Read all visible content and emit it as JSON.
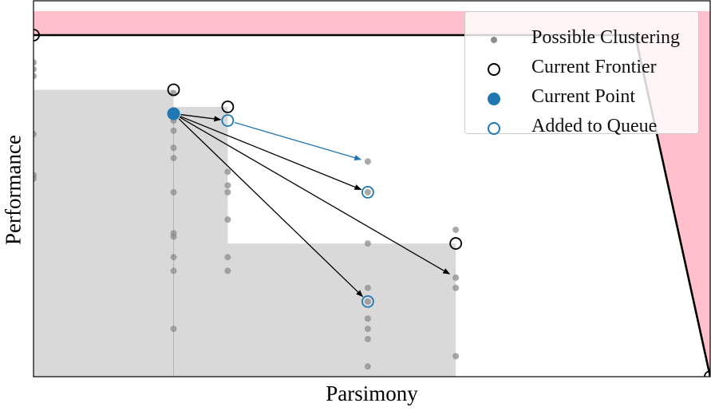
{
  "chart_data": {
    "type": "scatter",
    "title": "",
    "xlabel": "Parsimony",
    "ylabel": "Performance",
    "xlim": [
      0,
      100
    ],
    "ylim": [
      0,
      100
    ],
    "grid": false,
    "legend_position": "top-right",
    "colors": {
      "possible": "#8c8c8c",
      "frontier": "#000000",
      "current": "#1f77b4",
      "queue": "#1f77b4",
      "dominated_region": "#d9d9d9",
      "infeasible_region": "#ffc0cb",
      "blue_arrow": "#1f77b4",
      "black_arrow": "#000000"
    },
    "legend": [
      {
        "label": "Possible Clustering",
        "marker": "small-gray-dot"
      },
      {
        "label": "Current Frontier",
        "marker": "black-ring"
      },
      {
        "label": "Current Point",
        "marker": "blue-filled-circle"
      },
      {
        "label": "Added to Queue",
        "marker": "blue-ring"
      }
    ],
    "series": [
      {
        "name": "Possible Clustering",
        "points": [
          [
            0,
            92
          ],
          [
            0,
            90
          ],
          [
            0,
            88
          ],
          [
            0,
            71
          ],
          [
            0,
            59
          ],
          [
            0,
            58
          ],
          [
            20.7,
            83
          ],
          [
            20.7,
            77
          ],
          [
            20.7,
            75
          ],
          [
            20.7,
            72
          ],
          [
            20.7,
            67
          ],
          [
            20.7,
            64
          ],
          [
            20.7,
            54
          ],
          [
            20.7,
            42
          ],
          [
            20.7,
            41
          ],
          [
            20.7,
            35
          ],
          [
            20.7,
            31
          ],
          [
            20.7,
            14
          ],
          [
            28.7,
            60
          ],
          [
            28.7,
            56
          ],
          [
            28.7,
            54
          ],
          [
            28.7,
            46
          ],
          [
            28.7,
            35
          ],
          [
            28.7,
            31
          ],
          [
            49.4,
            63
          ],
          [
            49.4,
            54
          ],
          [
            49.4,
            39
          ],
          [
            49.4,
            26
          ],
          [
            49.4,
            22
          ],
          [
            49.4,
            17
          ],
          [
            49.4,
            14
          ],
          [
            49.4,
            11
          ],
          [
            49.4,
            3
          ],
          [
            62.4,
            43
          ],
          [
            62.4,
            29
          ],
          [
            62.4,
            26
          ],
          [
            62.4,
            6
          ]
        ]
      },
      {
        "name": "Current Frontier",
        "points": [
          [
            0,
            100
          ],
          [
            20.7,
            84
          ],
          [
            28.7,
            79
          ],
          [
            62.4,
            39
          ],
          [
            100,
            0
          ]
        ]
      },
      {
        "name": "Current Point",
        "points": [
          [
            20.7,
            77
          ]
        ]
      },
      {
        "name": "Added to Queue",
        "points": [
          [
            28.7,
            75
          ],
          [
            49.4,
            54
          ],
          [
            49.4,
            22
          ]
        ]
      }
    ],
    "frontier_line": [
      [
        0,
        100
      ],
      [
        88.9,
        100
      ],
      [
        100,
        0
      ]
    ],
    "dominated_region": [
      [
        0,
        100
      ],
      [
        0,
        84
      ],
      [
        20.7,
        84
      ],
      [
        20.7,
        79
      ],
      [
        28.7,
        79
      ],
      [
        28.7,
        39
      ],
      [
        62.4,
        39
      ],
      [
        62.4,
        0
      ],
      [
        0,
        0
      ]
    ],
    "infeasible_region": [
      [
        0,
        100
      ],
      [
        0,
        107
      ],
      [
        100,
        107
      ],
      [
        100,
        0
      ],
      [
        88.9,
        100
      ]
    ],
    "arrows": [
      {
        "from": [
          20.7,
          77
        ],
        "to": [
          28.7,
          75
        ],
        "color": "black_arrow"
      },
      {
        "from": [
          20.7,
          77
        ],
        "to": [
          49.4,
          54
        ],
        "color": "black_arrow"
      },
      {
        "from": [
          20.7,
          77
        ],
        "to": [
          49.4,
          22
        ],
        "color": "black_arrow"
      },
      {
        "from": [
          20.7,
          77
        ],
        "to": [
          62.4,
          29
        ],
        "color": "black_arrow"
      },
      {
        "from": [
          28.7,
          75
        ],
        "to": [
          49.4,
          63
        ],
        "color": "blue_arrow"
      }
    ]
  }
}
